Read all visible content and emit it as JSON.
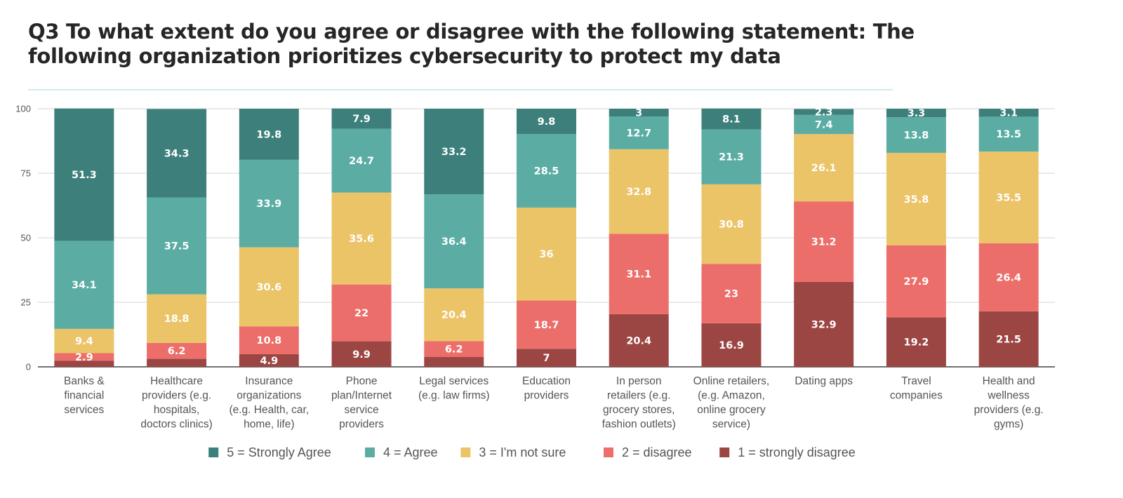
{
  "title": "Q3 To what extent do you agree or disagree with the following statement: The following organization prioritizes cybersecurity to protect my data",
  "chart_data": {
    "type": "bar",
    "stacked": true,
    "ylim": [
      0,
      100
    ],
    "yticks": [
      "0",
      "25",
      "50",
      "75",
      "100"
    ],
    "grid": true,
    "legend_position": "bottom",
    "categories": [
      [
        "Banks &",
        "financial",
        "services"
      ],
      [
        "Healthcare",
        "providers (e.g.",
        "hospitals,",
        "doctors clinics)"
      ],
      [
        "Insurance",
        "organizations",
        "(e.g. Health, car,",
        "home, life)"
      ],
      [
        "Phone",
        "plan/Internet",
        "service",
        "providers"
      ],
      [
        "Legal services",
        "(e.g. law firms)"
      ],
      [
        "Education",
        "providers"
      ],
      [
        "In person",
        "retailers (e.g.",
        "grocery stores,",
        "fashion outlets)"
      ],
      [
        "Online retailers,",
        "(e.g. Amazon,",
        "online grocery",
        "service)"
      ],
      [
        "Dating apps"
      ],
      [
        "Travel",
        "companies"
      ],
      [
        "Health and",
        "wellness",
        "providers (e.g.",
        "gyms)"
      ]
    ],
    "series": [
      {
        "name": "1 = strongly disagree",
        "color": "#9c4644",
        "values": [
          2.4,
          3.1,
          4.9,
          9.9,
          3.8,
          7,
          20.4,
          16.9,
          32.9,
          19.2,
          21.5
        ],
        "labels": [
          "",
          "",
          "4.9",
          "9.9",
          "",
          "7",
          "20.4",
          "16.9",
          "32.9",
          "19.2",
          "21.5"
        ]
      },
      {
        "name": "2 = disagree",
        "color": "#ec6e6a",
        "values": [
          2.9,
          6.2,
          10.8,
          22,
          6.2,
          18.7,
          31.1,
          23,
          31.2,
          27.9,
          26.4
        ],
        "labels": [
          "2.9",
          "6.2",
          "10.8",
          "22",
          "6.2",
          "18.7",
          "31.1",
          "23",
          "31.2",
          "27.9",
          "26.4"
        ]
      },
      {
        "name": "3 = I'm not sure",
        "color": "#ebc468",
        "values": [
          9.4,
          18.8,
          30.6,
          35.6,
          20.4,
          36,
          32.8,
          30.8,
          26.1,
          35.8,
          35.5
        ],
        "labels": [
          "9.4",
          "18.8",
          "30.6",
          "35.6",
          "20.4",
          "36",
          "32.8",
          "30.8",
          "26.1",
          "35.8",
          "35.5"
        ]
      },
      {
        "name": "4 = Agree",
        "color": "#5bada4",
        "values": [
          34.1,
          37.5,
          33.9,
          24.7,
          36.4,
          28.5,
          12.7,
          21.3,
          7.4,
          13.8,
          13.5
        ],
        "labels": [
          "34.1",
          "37.5",
          "33.9",
          "24.7",
          "36.4",
          "28.5",
          "12.7",
          "21.3",
          "7.4",
          "13.8",
          "13.5"
        ]
      },
      {
        "name": "5 = Strongly Agree",
        "color": "#3d7f7a",
        "values": [
          51.3,
          34.3,
          19.8,
          7.9,
          33.2,
          9.8,
          3,
          8.1,
          2.3,
          3.3,
          3.1
        ],
        "labels": [
          "51.3",
          "34.3",
          "19.8",
          "7.9",
          "33.2",
          "9.8",
          "3",
          "8.1",
          "2.3",
          "3.3",
          "3.1"
        ]
      }
    ],
    "legend_order": [
      4,
      3,
      2,
      1,
      0
    ]
  }
}
